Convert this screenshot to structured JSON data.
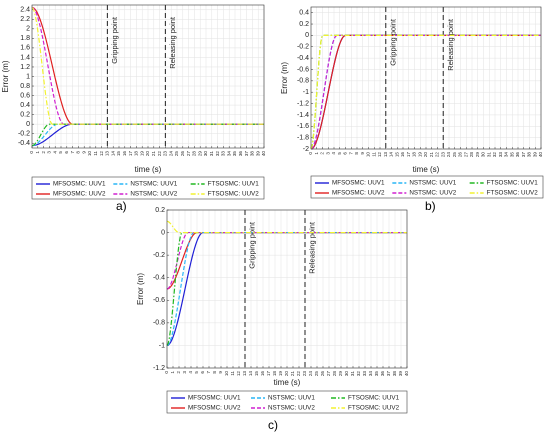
{
  "chart_data": [
    {
      "type": "line",
      "panel_label": "a)",
      "xlabel": "time (s)",
      "ylabel": "Error (m)",
      "xlim": [
        0,
        40
      ],
      "ylim": [
        -0.5,
        2.5
      ],
      "xticks": [
        0,
        1,
        2,
        3,
        4,
        5,
        6,
        7,
        8,
        9,
        10,
        11,
        12,
        13,
        14,
        15,
        16,
        17,
        18,
        19,
        20,
        21,
        22,
        23,
        24,
        25,
        26,
        27,
        28,
        29,
        30,
        31,
        32,
        33,
        34,
        35,
        36,
        37,
        38,
        39,
        40
      ],
      "yticks": [
        -0.4,
        -0.2,
        0,
        0.2,
        0.4,
        0.6,
        0.8,
        1,
        1.2,
        1.4,
        1.6,
        1.8,
        2,
        2.2,
        2.4
      ],
      "grid": true,
      "annotations": [
        {
          "text": "Gripping point",
          "x": 13
        },
        {
          "text": "Releasing point",
          "x": 23
        }
      ],
      "legend_position": "below",
      "series": [
        {
          "name": "MFSOSMC: UUV1",
          "color": "#1f1fd6",
          "dash": "solid",
          "initial": -0.45,
          "settle_time": 7
        },
        {
          "name": "MFSOSMC: UUV2",
          "color": "#e02020",
          "dash": "solid",
          "initial": 2.45,
          "settle_time": 7
        },
        {
          "name": "NSTSMC: UUV1",
          "color": "#29b6f6",
          "dash": "dashed",
          "initial": -0.45,
          "settle_time": 4.5
        },
        {
          "name": "NSTSMC: UUV2",
          "color": "#d020d0",
          "dash": "dashed",
          "initial": 2.45,
          "settle_time": 5.5
        },
        {
          "name": "FTSOSMC: UUV1",
          "color": "#22b822",
          "dash": "dashdot",
          "initial": -0.45,
          "settle_time": 3
        },
        {
          "name": "FTSOSMC: UUV2",
          "color": "#f2f230",
          "dash": "dashdot",
          "initial": 2.45,
          "settle_time": 3.5
        }
      ]
    },
    {
      "type": "line",
      "panel_label": "b)",
      "xlabel": "time (s)",
      "ylabel": "Error (m)",
      "xlim": [
        0,
        40
      ],
      "ylim": [
        -2,
        0.5
      ],
      "xticks": [
        0,
        1,
        2,
        3,
        4,
        5,
        6,
        7,
        8,
        9,
        10,
        11,
        12,
        13,
        14,
        15,
        16,
        17,
        18,
        19,
        20,
        21,
        22,
        23,
        24,
        25,
        26,
        27,
        28,
        29,
        30,
        31,
        32,
        33,
        34,
        35,
        36,
        37,
        38,
        39,
        40
      ],
      "yticks": [
        -2,
        -1.8,
        -1.6,
        -1.4,
        -1.2,
        -1,
        -0.8,
        -0.6,
        -0.4,
        -0.2,
        0,
        0.2,
        0.4
      ],
      "grid": true,
      "annotations": [
        {
          "text": "Gripping point",
          "x": 13
        },
        {
          "text": "Releasing point",
          "x": 23
        }
      ],
      "legend_position": "below",
      "series": [
        {
          "name": "MFSOSMC: UUV1",
          "color": "#1f1fd6",
          "dash": "solid",
          "initial": -2,
          "settle_time": 6
        },
        {
          "name": "MFSOSMC: UUV2",
          "color": "#e02020",
          "dash": "solid",
          "initial": -2,
          "settle_time": 6
        },
        {
          "name": "NSTSMC: UUV1",
          "color": "#29b6f6",
          "dash": "dashed",
          "initial": -2,
          "settle_time": 4.5
        },
        {
          "name": "NSTSMC: UUV2",
          "color": "#d020d0",
          "dash": "dashed",
          "initial": -2,
          "settle_time": 4.5
        },
        {
          "name": "FTSOSMC: UUV1",
          "color": "#22b822",
          "dash": "dashdot",
          "initial": -2,
          "settle_time": 2
        },
        {
          "name": "FTSOSMC: UUV2",
          "color": "#f2f230",
          "dash": "dashdot",
          "initial": -2,
          "settle_time": 2
        }
      ]
    },
    {
      "type": "line",
      "panel_label": "c)",
      "xlabel": "time (s)",
      "ylabel": "Error (m)",
      "xlim": [
        0,
        40
      ],
      "ylim": [
        -1.2,
        0.2
      ],
      "xticks": [
        0,
        1,
        2,
        3,
        4,
        5,
        6,
        7,
        8,
        9,
        10,
        11,
        12,
        13,
        14,
        15,
        16,
        17,
        18,
        19,
        20,
        21,
        22,
        23,
        24,
        25,
        26,
        27,
        28,
        29,
        30,
        31,
        32,
        33,
        34,
        35,
        36,
        37,
        38,
        39,
        40
      ],
      "yticks": [
        -1.2,
        -1,
        -0.8,
        -0.6,
        -0.4,
        -0.2,
        0,
        0.2
      ],
      "grid": true,
      "annotations": [
        {
          "text": "Gripping point",
          "x": 13
        },
        {
          "text": "Releasing point",
          "x": 23
        }
      ],
      "legend_position": "below",
      "series": [
        {
          "name": "MFSOSMC: UUV1",
          "color": "#1f1fd6",
          "dash": "solid",
          "initial": -1,
          "settle_time": 6
        },
        {
          "name": "MFSOSMC: UUV2",
          "color": "#e02020",
          "dash": "solid",
          "initial": -0.5,
          "settle_time": 5
        },
        {
          "name": "NSTSMC: UUV1",
          "color": "#29b6f6",
          "dash": "dashed",
          "initial": -1,
          "settle_time": 4.5
        },
        {
          "name": "NSTSMC: UUV2",
          "color": "#d020d0",
          "dash": "dashed",
          "initial": -0.5,
          "settle_time": 3.5
        },
        {
          "name": "FTSOSMC: UUV1",
          "color": "#22b822",
          "dash": "dashdot",
          "initial": -1,
          "settle_time": 2.5
        },
        {
          "name": "FTSOSMC: UUV2",
          "color": "#f2f230",
          "dash": "dashdot",
          "initial": 0.1,
          "settle_time": 2
        }
      ]
    }
  ]
}
